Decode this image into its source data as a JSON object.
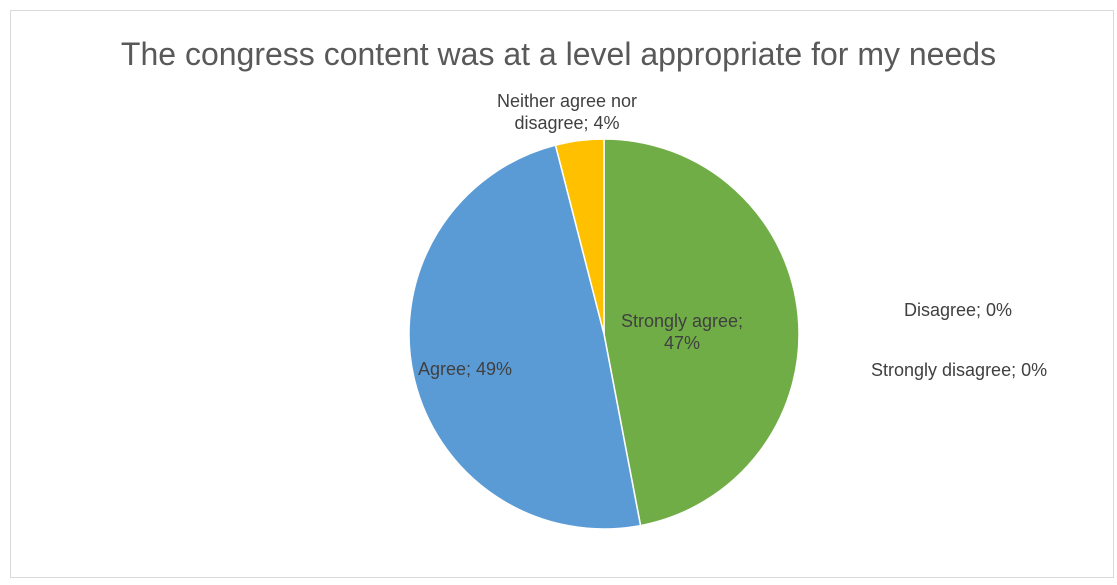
{
  "chart_data": {
    "type": "pie",
    "title": "The congress content was at a level appropriate for my needs",
    "slices": [
      {
        "name": "Strongly agree",
        "value": 47,
        "color": "#70ad47",
        "label_lines": [
          "Strongly agree;",
          "47%"
        ],
        "label_color": "#404040"
      },
      {
        "name": "Agree",
        "value": 49,
        "color": "#5b9bd5",
        "label_lines": [
          "Agree; 49%"
        ],
        "label_color": "#404040"
      },
      {
        "name": "Neither agree nor disagree",
        "value": 4,
        "color": "#ffc000",
        "label_lines": [
          "Neither agree nor",
          "disagree; 4%"
        ],
        "label_color": "#404040"
      },
      {
        "name": "Disagree",
        "value": 0,
        "color": "#ed7d31",
        "label_lines": [
          "Disagree; 0%"
        ],
        "label_color": "#404040"
      },
      {
        "name": "Strongly disagree",
        "value": 0,
        "color": "#a5a5a5",
        "label_lines": [
          "Strongly disagree; 0%"
        ],
        "label_color": "#404040"
      }
    ],
    "legend": "none"
  }
}
